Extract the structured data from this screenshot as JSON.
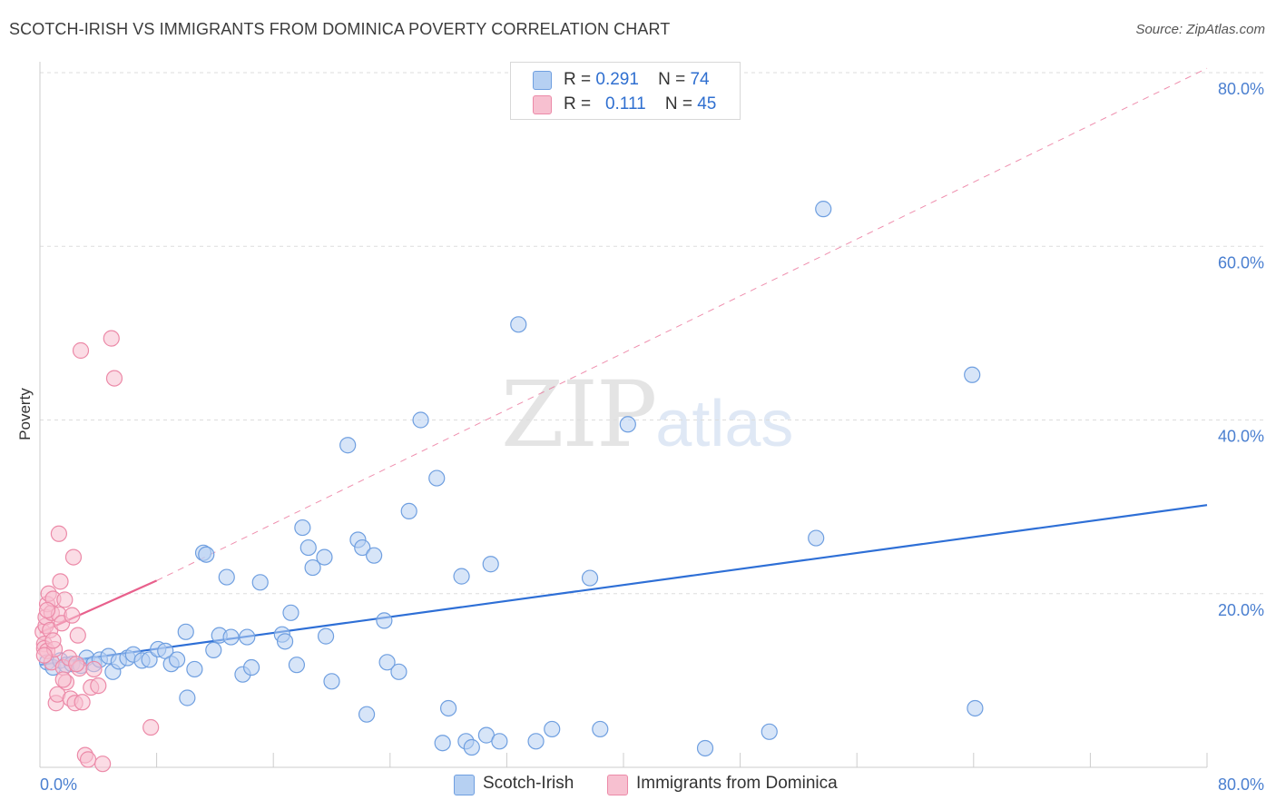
{
  "header": {
    "title": "SCOTCH-IRISH VS IMMIGRANTS FROM DOMINICA POVERTY CORRELATION CHART",
    "source": "Source: ZipAtlas.com"
  },
  "watermark": {
    "zip": "ZIP",
    "atlas": "atlas"
  },
  "legend": {
    "rows": [
      {
        "r_label": "R =",
        "r_value": "0.291",
        "n_label": "N =",
        "n_value": "74"
      },
      {
        "r_label": "R =",
        "r_value": "0.111",
        "n_label": "N =",
        "n_value": "45"
      }
    ]
  },
  "bottom_legend": {
    "items": [
      "Scotch-Irish",
      "Immigrants from Dominica"
    ]
  },
  "colors": {
    "blue_fill": "#b6d0f2",
    "blue_stroke": "#6f9fe0",
    "blue_line": "#2e6fd6",
    "pink_fill": "#f7c0d0",
    "pink_stroke": "#ec8aa8",
    "pink_line": "#e8608c",
    "grid": "#dddddd",
    "tick_text": "#4a7fd0"
  },
  "chart_data": {
    "type": "scatter",
    "title": "SCOTCH-IRISH VS IMMIGRANTS FROM DOMINICA POVERTY CORRELATION CHART",
    "xlabel": "",
    "ylabel": "Poverty",
    "xlim": [
      0,
      80
    ],
    "ylim": [
      0,
      80
    ],
    "x_tick_labels": [
      "0.0%",
      "80.0%"
    ],
    "y_tick_labels": [
      "20.0%",
      "40.0%",
      "60.0%",
      "80.0%"
    ],
    "y_ticks": [
      20,
      40,
      60,
      80
    ],
    "grid": true,
    "series": [
      {
        "name": "Scotch-Irish",
        "points": [
          [
            0.5,
            12.1
          ],
          [
            0.9,
            11.5
          ],
          [
            1.4,
            12.3
          ],
          [
            1.8,
            11.8
          ],
          [
            2.2,
            11.9
          ],
          [
            2.8,
            11.7
          ],
          [
            3.2,
            12.6
          ],
          [
            3.7,
            11.9
          ],
          [
            4.1,
            12.4
          ],
          [
            4.7,
            12.8
          ],
          [
            5.0,
            11.0
          ],
          [
            5.4,
            12.2
          ],
          [
            6.0,
            12.6
          ],
          [
            6.4,
            13.0
          ],
          [
            7.0,
            12.3
          ],
          [
            7.5,
            12.4
          ],
          [
            8.1,
            13.6
          ],
          [
            8.6,
            13.4
          ],
          [
            9.0,
            11.9
          ],
          [
            9.4,
            12.4
          ],
          [
            10.0,
            15.6
          ],
          [
            10.1,
            8.0
          ],
          [
            10.6,
            11.3
          ],
          [
            11.2,
            24.7
          ],
          [
            11.4,
            24.5
          ],
          [
            11.9,
            13.5
          ],
          [
            12.3,
            15.2
          ],
          [
            12.8,
            21.9
          ],
          [
            13.1,
            15.0
          ],
          [
            13.9,
            10.7
          ],
          [
            14.2,
            15.0
          ],
          [
            14.5,
            11.5
          ],
          [
            15.1,
            21.3
          ],
          [
            16.6,
            15.3
          ],
          [
            16.8,
            14.5
          ],
          [
            17.2,
            17.8
          ],
          [
            17.6,
            11.8
          ],
          [
            18.0,
            27.6
          ],
          [
            18.4,
            25.3
          ],
          [
            18.7,
            23.0
          ],
          [
            19.5,
            24.2
          ],
          [
            19.6,
            15.1
          ],
          [
            20.0,
            9.9
          ],
          [
            21.1,
            37.1
          ],
          [
            21.8,
            26.2
          ],
          [
            22.1,
            25.3
          ],
          [
            22.4,
            6.1
          ],
          [
            22.9,
            24.4
          ],
          [
            23.6,
            16.9
          ],
          [
            23.8,
            12.1
          ],
          [
            24.6,
            11.0
          ],
          [
            25.3,
            29.5
          ],
          [
            26.1,
            40.0
          ],
          [
            27.2,
            33.3
          ],
          [
            27.6,
            2.8
          ],
          [
            28.0,
            6.8
          ],
          [
            28.9,
            22.0
          ],
          [
            29.2,
            3.0
          ],
          [
            29.6,
            2.3
          ],
          [
            30.6,
            3.7
          ],
          [
            30.9,
            23.4
          ],
          [
            31.5,
            3.0
          ],
          [
            32.8,
            51.0
          ],
          [
            34.0,
            3.0
          ],
          [
            35.1,
            4.4
          ],
          [
            37.7,
            21.8
          ],
          [
            38.4,
            4.4
          ],
          [
            40.3,
            39.5
          ],
          [
            45.6,
            2.2
          ],
          [
            50.0,
            4.1
          ],
          [
            53.2,
            26.4
          ],
          [
            53.7,
            64.3
          ],
          [
            63.9,
            45.2
          ],
          [
            64.1,
            6.8
          ]
        ]
      },
      {
        "name": "Immigrants from Dominica",
        "points": [
          [
            0.2,
            15.6
          ],
          [
            0.3,
            14.2
          ],
          [
            0.3,
            13.7
          ],
          [
            0.4,
            16.3
          ],
          [
            0.4,
            17.3
          ],
          [
            0.5,
            18.8
          ],
          [
            0.5,
            13.4
          ],
          [
            0.6,
            20.0
          ],
          [
            0.7,
            15.8
          ],
          [
            0.8,
            17.8
          ],
          [
            0.8,
            12.1
          ],
          [
            0.9,
            19.4
          ],
          [
            1.0,
            13.6
          ],
          [
            1.1,
            7.4
          ],
          [
            1.2,
            8.4
          ],
          [
            1.3,
            17.6
          ],
          [
            1.3,
            26.9
          ],
          [
            1.4,
            21.4
          ],
          [
            1.5,
            16.6
          ],
          [
            1.6,
            11.5
          ],
          [
            1.7,
            19.3
          ],
          [
            1.8,
            9.8
          ],
          [
            2.0,
            12.6
          ],
          [
            2.1,
            7.9
          ],
          [
            2.2,
            17.5
          ],
          [
            2.3,
            24.2
          ],
          [
            2.4,
            7.4
          ],
          [
            2.6,
            15.2
          ],
          [
            2.7,
            11.4
          ],
          [
            2.8,
            48.0
          ],
          [
            2.9,
            7.5
          ],
          [
            3.1,
            1.4
          ],
          [
            3.3,
            0.9
          ],
          [
            3.5,
            9.2
          ],
          [
            3.7,
            11.3
          ],
          [
            4.0,
            9.4
          ],
          [
            4.3,
            0.4
          ],
          [
            4.9,
            49.4
          ],
          [
            5.1,
            44.8
          ],
          [
            7.6,
            4.6
          ],
          [
            0.5,
            18.1
          ],
          [
            0.9,
            14.6
          ],
          [
            1.6,
            10.1
          ],
          [
            0.3,
            12.9
          ],
          [
            2.5,
            11.9
          ]
        ]
      }
    ],
    "trendlines": [
      {
        "series": "Scotch-Irish",
        "style": "solid",
        "x": [
          0,
          80
        ],
        "y": [
          11.8,
          30.2
        ]
      },
      {
        "series": "Immigrants from Dominica",
        "style": "solid",
        "x": [
          0,
          8
        ],
        "y": [
          15.5,
          21.5
        ]
      },
      {
        "series": "Immigrants from Dominica",
        "style": "dashed",
        "x": [
          8,
          80
        ],
        "y": [
          21.5,
          80.5
        ]
      }
    ]
  }
}
